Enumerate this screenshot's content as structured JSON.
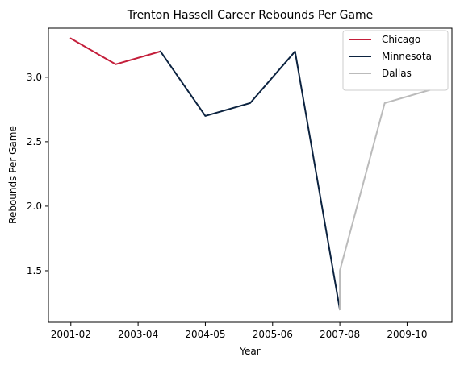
{
  "chart_data": {
    "type": "line",
    "title": "Trenton Hassell Career Rebounds Per Game",
    "xlabel": "Year",
    "ylabel": "Rebounds Per Game",
    "x_tick_labels": [
      "2001-02",
      "2003-04",
      "2004-05",
      "2005-06",
      "2007-08",
      "2009-10"
    ],
    "x_tick_positions": [
      0,
      1.5,
      3,
      4.5,
      6,
      7.5
    ],
    "y_ticks": [
      1.5,
      2.0,
      2.5,
      3.0
    ],
    "y_tick_labels": [
      "1.5",
      "2.0",
      "2.5",
      "3.0"
    ],
    "xlim": [
      -0.5,
      8.5
    ],
    "ylim": [
      1.1,
      3.38
    ],
    "grid": false,
    "legend_position": "top-right",
    "series": [
      {
        "name": "Chicago",
        "color": "#C41E3A",
        "x": [
          0,
          1,
          2
        ],
        "y": [
          3.3,
          3.1,
          3.2
        ]
      },
      {
        "name": "Minnesota",
        "color": "#0C2340",
        "x": [
          2,
          3,
          4,
          5,
          6
        ],
        "y": [
          3.2,
          2.7,
          2.8,
          3.2,
          1.2
        ]
      },
      {
        "name": "Dallas",
        "color": "#BBBBBB",
        "x": [
          6,
          6,
          7,
          8
        ],
        "y": [
          1.2,
          1.5,
          2.8,
          2.9
        ]
      }
    ]
  }
}
